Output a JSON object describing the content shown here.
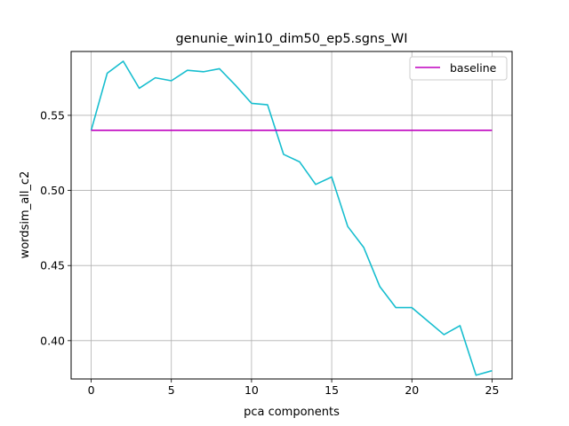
{
  "chart_data": {
    "type": "line",
    "title": "genunie_win10_dim50_ep5.sgns_WI",
    "xlabel": "pca components",
    "ylabel": "wordsim_all_c2",
    "xlim": [
      -1.25,
      26.25
    ],
    "ylim": [
      0.3745,
      0.5925
    ],
    "xticks": [
      0,
      5,
      10,
      15,
      20,
      25
    ],
    "xtick_labels": [
      "0",
      "5",
      "10",
      "15",
      "20",
      "25"
    ],
    "yticks": [
      0.4,
      0.45,
      0.5,
      0.55
    ],
    "ytick_labels": [
      "0.40",
      "0.45",
      "0.50",
      "0.55"
    ],
    "grid": true,
    "legend_position": "upper right",
    "series": [
      {
        "color": "#17becf",
        "x": [
          0,
          1,
          2,
          3,
          4,
          5,
          6,
          7,
          8,
          9,
          10,
          11,
          12,
          13,
          14,
          15,
          16,
          17,
          18,
          19,
          20,
          21,
          22,
          23,
          24,
          25
        ],
        "values": [
          0.54,
          0.578,
          0.586,
          0.568,
          0.575,
          0.573,
          0.58,
          0.579,
          0.581,
          0.57,
          0.558,
          0.557,
          0.524,
          0.519,
          0.504,
          0.509,
          0.476,
          0.462,
          0.436,
          0.422,
          0.422,
          0.413,
          0.404,
          0.41,
          0.377,
          0.38
        ]
      },
      {
        "name": "baseline",
        "color": "#bf00bf",
        "x": [
          0,
          25
        ],
        "values": [
          0.54,
          0.54
        ]
      }
    ]
  }
}
